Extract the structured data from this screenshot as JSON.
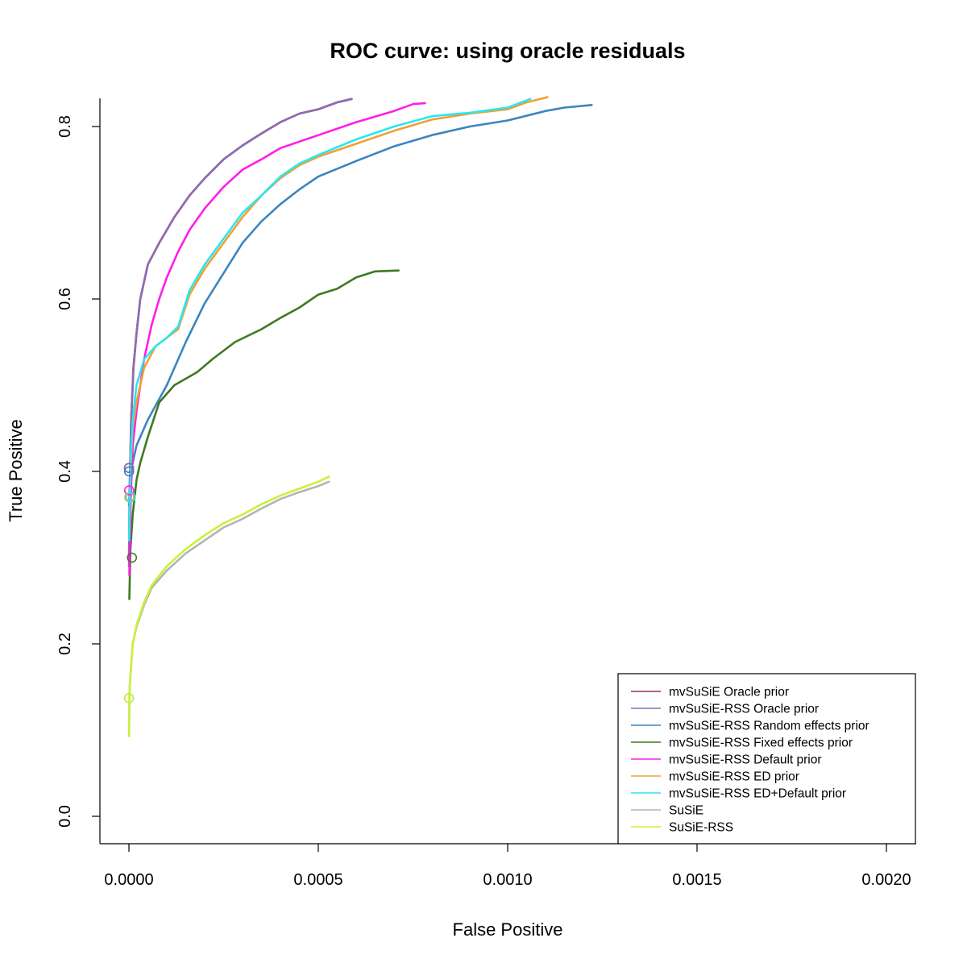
{
  "chart_data": {
    "type": "line",
    "title": "ROC curve: using oracle residuals",
    "xlabel": "False Positive",
    "ylabel": "True Positive",
    "xlim": [
      0,
      0.0021
    ],
    "ylim": [
      -0.02,
      0.83
    ],
    "x_ticks": [
      0,
      0.0005,
      0.001,
      0.0015,
      0.002
    ],
    "x_tick_labels": [
      "0.0000",
      "0.0005",
      "0.0010",
      "0.0015",
      "0.0020"
    ],
    "y_ticks": [
      0,
      0.2,
      0.4,
      0.6,
      0.8
    ],
    "y_tick_labels": [
      "0.0",
      "0.2",
      "0.4",
      "0.6",
      "0.8"
    ],
    "grid": false,
    "legend_position": "bottom-right",
    "series": [
      {
        "name": "mvSuSiE Oracle prior",
        "color": "#a02c4a",
        "marker": {
          "x": 2e-07,
          "y": 0.404
        },
        "points": [
          [
            2e-07,
            0.3
          ],
          [
            2e-06,
            0.38
          ],
          [
            6e-06,
            0.46
          ],
          [
            1.2e-05,
            0.52
          ],
          [
            2e-05,
            0.56
          ],
          [
            3e-05,
            0.6
          ],
          [
            5e-05,
            0.64
          ],
          [
            8e-05,
            0.665
          ],
          [
            0.00012,
            0.695
          ],
          [
            0.00016,
            0.72
          ],
          [
            0.0002,
            0.74
          ],
          [
            0.00025,
            0.762
          ],
          [
            0.0003,
            0.778
          ],
          [
            0.00035,
            0.792
          ],
          [
            0.0004,
            0.805
          ],
          [
            0.00045,
            0.815
          ],
          [
            0.0005,
            0.82
          ],
          [
            0.00055,
            0.828
          ],
          [
            0.000588,
            0.832
          ]
        ]
      },
      {
        "name": "mvSuSiE-RSS Oracle prior",
        "color": "#8e6bb5",
        "marker": {
          "x": 2e-07,
          "y": 0.404
        },
        "points": [
          [
            2e-07,
            0.29
          ],
          [
            2e-06,
            0.38
          ],
          [
            6e-06,
            0.46
          ],
          [
            1.2e-05,
            0.52
          ],
          [
            2e-05,
            0.56
          ],
          [
            3e-05,
            0.6
          ],
          [
            5e-05,
            0.64
          ],
          [
            8e-05,
            0.665
          ],
          [
            0.00012,
            0.695
          ],
          [
            0.00016,
            0.72
          ],
          [
            0.0002,
            0.74
          ],
          [
            0.00025,
            0.762
          ],
          [
            0.0003,
            0.778
          ],
          [
            0.00035,
            0.792
          ],
          [
            0.0004,
            0.805
          ],
          [
            0.00045,
            0.815
          ],
          [
            0.0005,
            0.82
          ],
          [
            0.00055,
            0.828
          ],
          [
            0.000588,
            0.832
          ]
        ]
      },
      {
        "name": "mvSuSiE-RSS Random effects prior",
        "color": "#3a86bf",
        "marker": {
          "x": 5e-07,
          "y": 0.4
        },
        "points": [
          [
            5e-07,
            0.36
          ],
          [
            5e-06,
            0.4
          ],
          [
            2e-05,
            0.43
          ],
          [
            5e-05,
            0.46
          ],
          [
            0.0001,
            0.5
          ],
          [
            0.00015,
            0.55
          ],
          [
            0.0002,
            0.595
          ],
          [
            0.00025,
            0.63
          ],
          [
            0.0003,
            0.665
          ],
          [
            0.00035,
            0.69
          ],
          [
            0.0004,
            0.71
          ],
          [
            0.00045,
            0.727
          ],
          [
            0.0005,
            0.742
          ],
          [
            0.0006,
            0.76
          ],
          [
            0.0007,
            0.777
          ],
          [
            0.0008,
            0.79
          ],
          [
            0.0009,
            0.8
          ],
          [
            0.001,
            0.807
          ],
          [
            0.0011,
            0.818
          ],
          [
            0.00115,
            0.822
          ],
          [
            0.001222,
            0.825
          ]
        ]
      },
      {
        "name": "mvSuSiE-RSS Fixed effects prior",
        "color": "#3d7a22",
        "marker": {
          "x": 8e-06,
          "y": 0.3
        },
        "points": [
          [
            1e-06,
            0.252
          ],
          [
            4e-06,
            0.31
          ],
          [
            1e-05,
            0.35
          ],
          [
            2e-05,
            0.39
          ],
          [
            3e-05,
            0.41
          ],
          [
            5e-05,
            0.44
          ],
          [
            8e-05,
            0.48
          ],
          [
            0.00012,
            0.5
          ],
          [
            0.00018,
            0.515
          ],
          [
            0.00022,
            0.53
          ],
          [
            0.00028,
            0.55
          ],
          [
            0.00035,
            0.565
          ],
          [
            0.0004,
            0.578
          ],
          [
            0.00045,
            0.59
          ],
          [
            0.0005,
            0.605
          ],
          [
            0.00055,
            0.612
          ],
          [
            0.0006,
            0.625
          ],
          [
            0.00065,
            0.632
          ],
          [
            0.000712,
            0.633
          ]
        ]
      },
      {
        "name": "mvSuSiE-RSS Default prior",
        "color": "#ff1ee8",
        "marker": {
          "x": 5e-07,
          "y": 0.378
        },
        "points": [
          [
            1e-06,
            0.28
          ],
          [
            5e-06,
            0.37
          ],
          [
            1e-05,
            0.43
          ],
          [
            2e-05,
            0.47
          ],
          [
            4e-05,
            0.53
          ],
          [
            6e-05,
            0.57
          ],
          [
            8e-05,
            0.6
          ],
          [
            0.0001,
            0.625
          ],
          [
            0.00013,
            0.655
          ],
          [
            0.00016,
            0.68
          ],
          [
            0.0002,
            0.705
          ],
          [
            0.00025,
            0.73
          ],
          [
            0.0003,
            0.75
          ],
          [
            0.00035,
            0.762
          ],
          [
            0.0004,
            0.775
          ],
          [
            0.0005,
            0.79
          ],
          [
            0.0006,
            0.805
          ],
          [
            0.0007,
            0.818
          ],
          [
            0.00075,
            0.826
          ],
          [
            0.000782,
            0.827
          ]
        ]
      },
      {
        "name": "mvSuSiE-RSS ED prior",
        "color": "#f0a032",
        "marker": {
          "x": 1e-06,
          "y": 0.37
        },
        "points": [
          [
            1e-06,
            0.33
          ],
          [
            5e-06,
            0.41
          ],
          [
            1e-05,
            0.45
          ],
          [
            2e-05,
            0.48
          ],
          [
            4e-05,
            0.52
          ],
          [
            7e-05,
            0.545
          ],
          [
            0.0001,
            0.555
          ],
          [
            0.00013,
            0.565
          ],
          [
            0.00016,
            0.605
          ],
          [
            0.0002,
            0.635
          ],
          [
            0.00025,
            0.665
          ],
          [
            0.0003,
            0.695
          ],
          [
            0.00035,
            0.72
          ],
          [
            0.0004,
            0.74
          ],
          [
            0.00045,
            0.755
          ],
          [
            0.0005,
            0.765
          ],
          [
            0.0006,
            0.78
          ],
          [
            0.0007,
            0.795
          ],
          [
            0.0008,
            0.808
          ],
          [
            0.0009,
            0.815
          ],
          [
            0.001,
            0.82
          ],
          [
            0.00105,
            0.828
          ],
          [
            0.001105,
            0.834
          ]
        ]
      },
      {
        "name": "mvSuSiE-RSS ED+Default prior",
        "color": "#2ae6f0",
        "marker": {
          "x": 5e-06,
          "y": 0.37
        },
        "points": [
          [
            5e-07,
            0.32
          ],
          [
            5e-06,
            0.42
          ],
          [
            1e-05,
            0.46
          ],
          [
            2e-05,
            0.5
          ],
          [
            4e-05,
            0.53
          ],
          [
            7e-05,
            0.545
          ],
          [
            0.0001,
            0.555
          ],
          [
            0.00013,
            0.568
          ],
          [
            0.00016,
            0.61
          ],
          [
            0.0002,
            0.64
          ],
          [
            0.00025,
            0.67
          ],
          [
            0.0003,
            0.7
          ],
          [
            0.00035,
            0.72
          ],
          [
            0.0004,
            0.742
          ],
          [
            0.00045,
            0.757
          ],
          [
            0.0005,
            0.767
          ],
          [
            0.0006,
            0.785
          ],
          [
            0.0007,
            0.8
          ],
          [
            0.0008,
            0.812
          ],
          [
            0.0009,
            0.816
          ],
          [
            0.001,
            0.822
          ],
          [
            0.00106,
            0.832
          ]
        ]
      },
      {
        "name": "SuSiE",
        "color": "#b4b4b4",
        "marker": {
          "x": 2e-07,
          "y": 0.137
        },
        "points": [
          [
            2e-07,
            0.1
          ],
          [
            2e-06,
            0.15
          ],
          [
            1e-05,
            0.2
          ],
          [
            2e-05,
            0.22
          ],
          [
            4e-05,
            0.245
          ],
          [
            6e-05,
            0.265
          ],
          [
            0.0001,
            0.285
          ],
          [
            0.00015,
            0.305
          ],
          [
            0.0002,
            0.32
          ],
          [
            0.00025,
            0.335
          ],
          [
            0.0003,
            0.345
          ],
          [
            0.00035,
            0.357
          ],
          [
            0.0004,
            0.368
          ],
          [
            0.00045,
            0.376
          ],
          [
            0.0005,
            0.383
          ],
          [
            0.000528,
            0.388
          ]
        ]
      },
      {
        "name": "SuSiE-RSS",
        "color": "#c8f23a",
        "marker": {
          "x": 2e-07,
          "y": 0.137
        },
        "points": [
          [
            2e-07,
            0.093
          ],
          [
            2e-06,
            0.15
          ],
          [
            1e-05,
            0.2
          ],
          [
            2e-05,
            0.222
          ],
          [
            4e-05,
            0.248
          ],
          [
            6e-05,
            0.268
          ],
          [
            0.0001,
            0.29
          ],
          [
            0.00015,
            0.31
          ],
          [
            0.0002,
            0.326
          ],
          [
            0.00025,
            0.34
          ],
          [
            0.0003,
            0.35
          ],
          [
            0.00035,
            0.362
          ],
          [
            0.0004,
            0.372
          ],
          [
            0.00045,
            0.38
          ],
          [
            0.0005,
            0.388
          ],
          [
            0.000528,
            0.394
          ]
        ]
      }
    ]
  }
}
